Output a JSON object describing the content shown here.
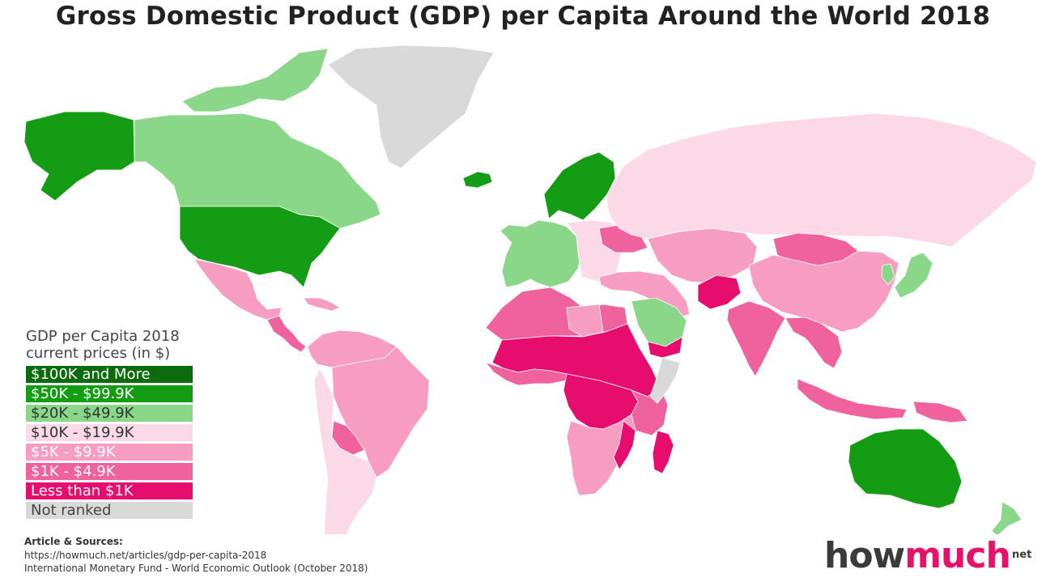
{
  "title": "Gross Domestic Product (GDP) per Capita Around the World 2018",
  "legend": {
    "title_line1": "GDP per Capita 2018",
    "title_line2": "current prices (in $)",
    "categories": [
      {
        "label": "$100K and More",
        "color": "#0c6b0c",
        "text_color": "#ffffff"
      },
      {
        "label": "$50K - $99.9K",
        "color": "#149c14",
        "text_color": "#ffffff"
      },
      {
        "label": "$20K - $49.9K",
        "color": "#8ad78a",
        "text_color": "#333333"
      },
      {
        "label": "$10K - $19.9K",
        "color": "#fcd9e7",
        "text_color": "#333333"
      },
      {
        "label": "$5K - $9.9K",
        "color": "#f79dc2",
        "text_color": "#ffffff"
      },
      {
        "label": "$1K - $4.9K",
        "color": "#f0629e",
        "text_color": "#ffffff"
      },
      {
        "label": "Less than $1K",
        "color": "#e60d6f",
        "text_color": "#ffffff"
      },
      {
        "label": "Not ranked",
        "color": "#d9d9d9",
        "text_color": "#444444"
      }
    ]
  },
  "regions": [
    {
      "name": "Alaska (USA)",
      "category": "$50K - $99.9K"
    },
    {
      "name": "Canada",
      "category": "$20K - $49.9K"
    },
    {
      "name": "Canadian Arctic Islands",
      "category": "$20K - $49.9K"
    },
    {
      "name": "Greenland",
      "category": "Not ranked"
    },
    {
      "name": "United States",
      "category": "$50K - $99.9K"
    },
    {
      "name": "Mexico",
      "category": "$5K - $9.9K"
    },
    {
      "name": "Central America",
      "category": "$1K - $4.9K"
    },
    {
      "name": "Caribbean",
      "category": "$5K - $9.9K"
    },
    {
      "name": "Northern South America",
      "category": "$5K - $9.9K"
    },
    {
      "name": "Brazil",
      "category": "$5K - $9.9K"
    },
    {
      "name": "Bolivia",
      "category": "$1K - $4.9K"
    },
    {
      "name": "Chile and Argentina",
      "category": "$10K - $19.9K"
    },
    {
      "name": "Iceland",
      "category": "$50K - $99.9K"
    },
    {
      "name": "Scandinavia",
      "category": "$50K - $99.9K"
    },
    {
      "name": "Western Europe",
      "category": "$20K - $49.9K"
    },
    {
      "name": "Eastern Europe",
      "category": "$10K - $19.9K"
    },
    {
      "name": "Ukraine",
      "category": "$1K - $4.9K"
    },
    {
      "name": "Russia",
      "category": "$10K - $19.9K"
    },
    {
      "name": "Turkey and Middle East",
      "category": "$5K - $9.9K"
    },
    {
      "name": "Saudi Arabia",
      "category": "$20K - $49.9K"
    },
    {
      "name": "Yemen",
      "category": "Less than $1K"
    },
    {
      "name": "Central Asia",
      "category": "$5K - $9.9K"
    },
    {
      "name": "Afghanistan",
      "category": "Less than $1K"
    },
    {
      "name": "Mongolia",
      "category": "$1K - $4.9K"
    },
    {
      "name": "China",
      "category": "$5K - $9.9K"
    },
    {
      "name": "India",
      "category": "$1K - $4.9K"
    },
    {
      "name": "Southeast Asia",
      "category": "$1K - $4.9K"
    },
    {
      "name": "Japan",
      "category": "$20K - $49.9K"
    },
    {
      "name": "Korea",
      "category": "$20K - $49.9K"
    },
    {
      "name": "Indonesia",
      "category": "$1K - $4.9K"
    },
    {
      "name": "Papua New Guinea",
      "category": "$1K - $4.9K"
    },
    {
      "name": "North Africa",
      "category": "$1K - $4.9K"
    },
    {
      "name": "Libya",
      "category": "$5K - $9.9K"
    },
    {
      "name": "Sahel",
      "category": "Less than $1K"
    },
    {
      "name": "West Africa Coast",
      "category": "$1K - $4.9K"
    },
    {
      "name": "Central Africa",
      "category": "Less than $1K"
    },
    {
      "name": "East Africa",
      "category": "$1K - $4.9K"
    },
    {
      "name": "Southern Africa",
      "category": "$5K - $9.9K"
    },
    {
      "name": "Mozambique",
      "category": "Less than $1K"
    },
    {
      "name": "Madagascar",
      "category": "Less than $1K"
    },
    {
      "name": "Somalia",
      "category": "Not ranked"
    },
    {
      "name": "Australia",
      "category": "$50K - $99.9K"
    },
    {
      "name": "New Zealand",
      "category": "$20K - $49.9K"
    }
  ],
  "sources": {
    "heading": "Article & Sources:",
    "line1": "https://howmuch.net/articles/gdp-per-capita-2018",
    "line2": "International Monetary Fund - World Economic Outlook (October 2018)"
  },
  "logo": {
    "part1": "how",
    "part2": "much",
    "suffix": "net"
  }
}
